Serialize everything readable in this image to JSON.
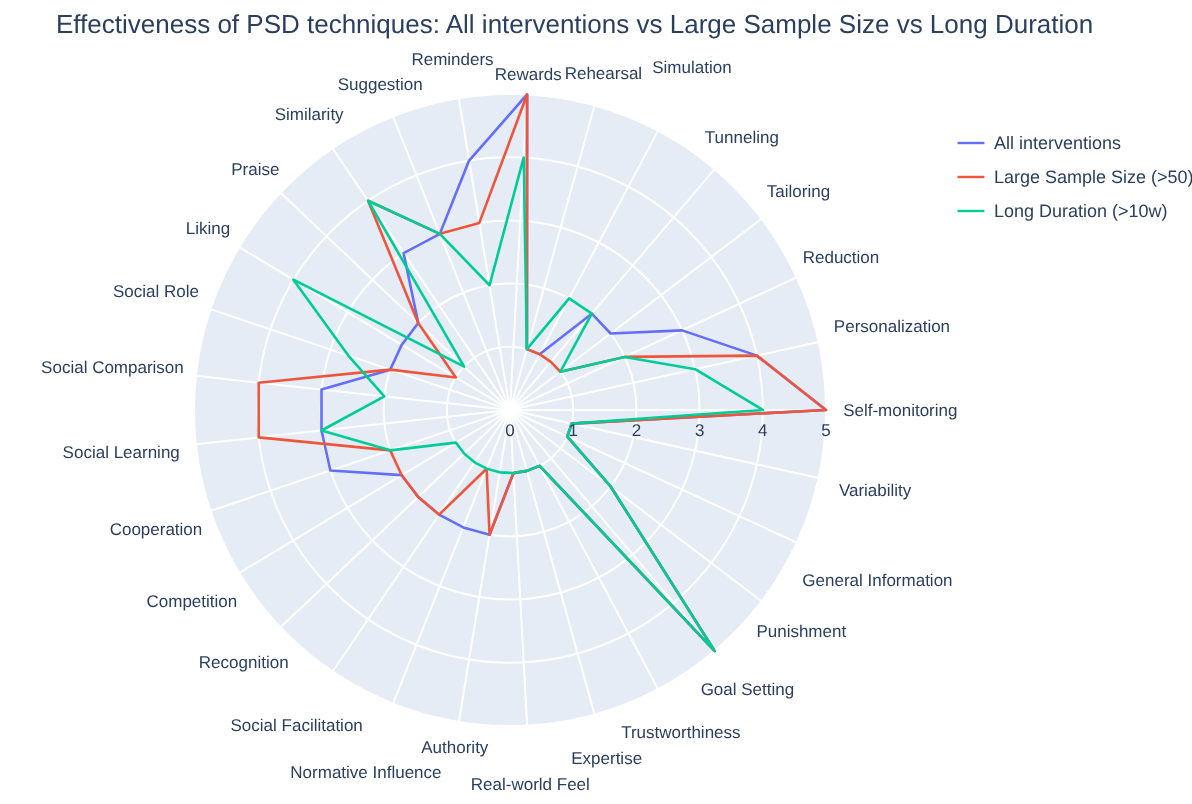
{
  "chart_data": {
    "type": "radar",
    "title": "Effectiveness of PSD techniques: All interventions vs Large Sample Size vs Long Duration",
    "categories": [
      "Rewards",
      "Rehearsal",
      "Simulation",
      "Tunneling",
      "Tailoring",
      "Reduction",
      "Personalization",
      "Self-monitoring",
      "Variability",
      "General Information",
      "Punishment",
      "Goal Setting",
      "Trustworthiness",
      "Expertise",
      "Real-world Feel",
      "Authority",
      "Normative Influence",
      "Social Facilitation",
      "Recognition",
      "Competition",
      "Cooperation",
      "Social Learning",
      "Social Comparison",
      "Social Role",
      "Liking",
      "Praise",
      "Similarity",
      "Suggestion",
      "Reminders"
    ],
    "series": [
      {
        "name": "All interventions",
        "color": "#636efa",
        "values": [
          5,
          1,
          1,
          2,
          2,
          3,
          4,
          5,
          1,
          1,
          2,
          5,
          1,
          1,
          1,
          2,
          2,
          2,
          2,
          2,
          3,
          3,
          3,
          2,
          2,
          2,
          3,
          3,
          4
        ]
      },
      {
        "name": "Large Sample Size (>50)",
        "color": "#ef553b",
        "values": [
          5,
          1,
          1,
          1,
          1,
          2,
          4,
          5,
          1,
          1,
          2,
          5,
          1,
          1,
          1,
          2,
          1,
          2,
          2,
          2,
          2,
          4,
          4,
          2,
          1,
          2,
          4,
          3,
          3
        ]
      },
      {
        "name": "Long Duration (>10w)",
        "color": "#00cc96",
        "values": [
          4,
          1,
          2,
          2,
          1,
          2,
          3,
          4,
          1,
          1,
          2,
          5,
          1,
          1,
          1,
          1,
          1,
          1,
          1,
          1,
          2,
          3,
          2,
          2.7,
          4,
          1,
          4,
          3,
          2
        ]
      }
    ],
    "ylim": [
      0,
      5
    ],
    "yticks": [
      0,
      1,
      2,
      3,
      4,
      5
    ],
    "grid": true,
    "legend": "top right"
  }
}
